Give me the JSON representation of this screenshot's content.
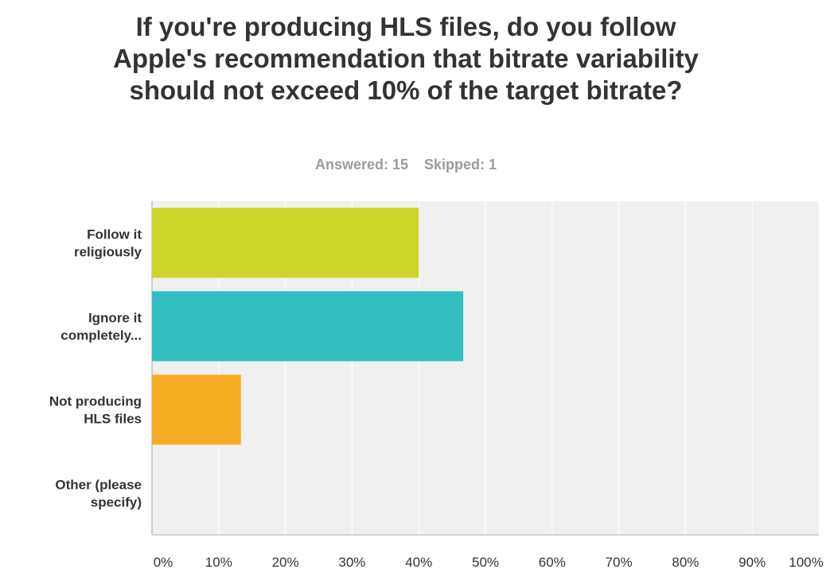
{
  "survey": {
    "answered": "Answered: 15",
    "skipped": "Skipped: 1"
  },
  "chart_data": {
    "type": "bar",
    "orientation": "horizontal",
    "title": "If you're producing HLS files, do you follow Apple's recommendation that bitrate variability should not exceed 10% of the target bitrate?",
    "categories": [
      [
        "Follow it",
        "religiously"
      ],
      [
        "Ignore it",
        "completely..."
      ],
      [
        "Not producing",
        "HLS files"
      ],
      [
        "Other (please",
        "specify)"
      ]
    ],
    "values": [
      40,
      46.67,
      13.33,
      0
    ],
    "colors": [
      "#cdd628",
      "#33bec0",
      "#f5ae23",
      "#8f8f8f"
    ],
    "xlim": [
      0,
      100
    ],
    "xticks": [
      "0%",
      "10%",
      "20%",
      "30%",
      "40%",
      "50%",
      "60%",
      "70%",
      "80%",
      "90%",
      "100%"
    ],
    "grid": true,
    "plot_background": "#f0f0f0"
  }
}
